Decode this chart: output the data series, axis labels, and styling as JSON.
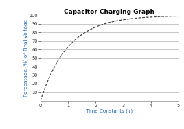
{
  "title": "Capacitor Charging Graph",
  "xlabel": "Time Constants (τ)",
  "ylabel": "Percentage (%) of Final Voltage",
  "xlim": [
    0,
    5
  ],
  "ylim": [
    0,
    100
  ],
  "xticks": [
    0,
    1,
    2,
    3,
    4,
    5
  ],
  "yticks": [
    10,
    20,
    30,
    40,
    50,
    60,
    70,
    80,
    90,
    100
  ],
  "line_color": "#444444",
  "line_style": "--",
  "line_width": 0.9,
  "background_color": "#ffffff",
  "plot_bg_color": "#ffffff",
  "grid_color": "#b0b0b0",
  "title_fontsize": 6.5,
  "label_fontsize": 5.2,
  "tick_fontsize": 4.8,
  "ylabel_color": "#1a5fb4",
  "xlabel_color": "#1a5fb4",
  "title_color": "#000000"
}
